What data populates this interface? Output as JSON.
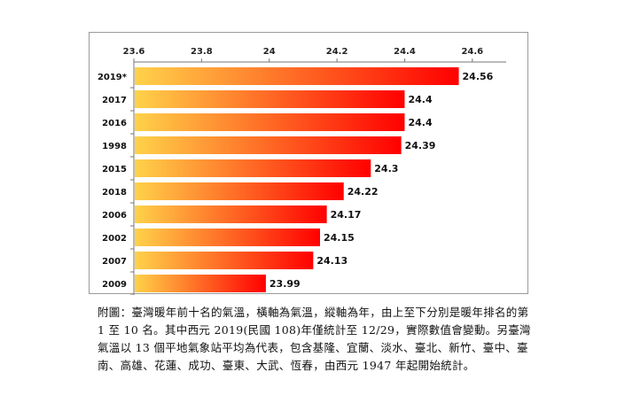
{
  "chart_data": {
    "type": "bar",
    "orientation": "horizontal",
    "categories": [
      "2019*",
      "2017",
      "2016",
      "1998",
      "2015",
      "2018",
      "2006",
      "2002",
      "2007",
      "2009"
    ],
    "values": [
      24.56,
      24.4,
      24.4,
      24.39,
      24.3,
      24.22,
      24.17,
      24.15,
      24.13,
      23.99
    ],
    "value_labels": [
      "24.56",
      "24.4",
      "24.4",
      "24.39",
      "24.3",
      "24.22",
      "24.17",
      "24.15",
      "24.13",
      "23.99"
    ],
    "xlim": [
      23.6,
      24.7
    ],
    "x_ticks": [
      23.6,
      23.8,
      24.0,
      24.2,
      24.4,
      24.6
    ],
    "x_tick_labels": [
      "23.6",
      "23.8",
      "24",
      "24.2",
      "24.4",
      "24.6"
    ],
    "x_axis_position": "top",
    "grid": false,
    "legend": "none",
    "bar_gradient": [
      "#ffd24a",
      "#ff0000"
    ]
  },
  "caption": "附圖：臺灣暖年前十名的氣溫，橫軸為氣溫，縱軸為年，由上至下分別是暖年排名的第 1 至 10 名。其中西元 2019(民國 108)年僅統計至 12/29，實際數值會變動。另臺灣氣溫以 13 個平地氣象站平均為代表，包含基隆、宜蘭、淡水、臺北、新竹、臺中、臺南、高雄、花蓮、成功、臺東、大武、恆春，由西元 1947 年起開始統計。"
}
